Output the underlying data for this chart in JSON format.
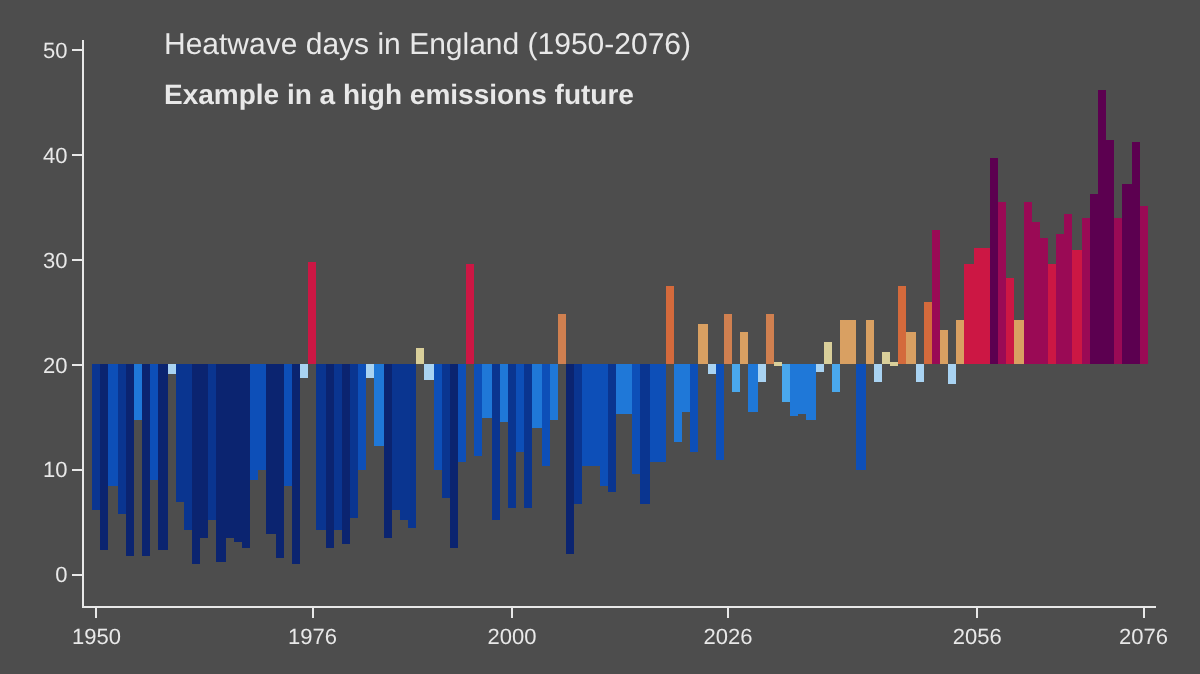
{
  "chart_data": {
    "type": "bar",
    "title": "Heatwave days in England (1950-2076)",
    "subtitle": "Example in a high emissions future",
    "x": [
      1950,
      1951,
      1952,
      1953,
      1954,
      1955,
      1956,
      1957,
      1958,
      1959,
      1960,
      1961,
      1962,
      1963,
      1964,
      1965,
      1966,
      1967,
      1968,
      1969,
      1970,
      1971,
      1972,
      1973,
      1974,
      1975,
      1976,
      1977,
      1978,
      1979,
      1980,
      1981,
      1982,
      1983,
      1984,
      1985,
      1986,
      1987,
      1988,
      1989,
      1990,
      1991,
      1992,
      1993,
      1994,
      1995,
      1996,
      1997,
      1998,
      1999,
      2000,
      2001,
      2002,
      2003,
      2004,
      2005,
      2006,
      2007,
      2008,
      2009,
      2010,
      2011,
      2012,
      2013,
      2014,
      2015,
      2016,
      2017,
      2018,
      2019,
      2020,
      2021,
      2022,
      2023,
      2024,
      2025,
      2026,
      2027,
      2028,
      2029,
      2030,
      2031,
      2032,
      2033,
      2034,
      2035,
      2036,
      2037,
      2038,
      2039,
      2040,
      2041,
      2042,
      2043,
      2044,
      2045,
      2046,
      2047,
      2048,
      2049,
      2050,
      2051,
      2052,
      2053,
      2054,
      2055,
      2056,
      2057,
      2058,
      2059,
      2060,
      2061,
      2062,
      2063,
      2064,
      2065,
      2066,
      2067,
      2068,
      2069,
      2070,
      2071,
      2072,
      2073,
      2074,
      2075,
      2076
    ],
    "base": [
      20,
      20,
      20,
      20,
      20,
      20,
      20,
      20,
      20,
      20,
      20,
      20,
      20,
      20,
      20,
      20,
      20,
      20,
      20,
      20,
      20,
      20,
      20,
      20,
      20,
      20,
      20,
      20,
      20,
      20,
      20,
      20,
      20,
      20,
      20,
      20,
      20,
      20,
      20,
      20,
      20,
      20,
      20,
      20,
      20,
      20,
      20,
      20,
      20,
      20,
      20,
      20,
      20,
      20,
      20,
      20,
      20,
      20,
      20,
      20,
      20,
      20,
      20,
      20,
      20,
      20,
      20,
      20,
      20,
      20,
      20,
      20,
      20,
      20,
      20,
      20,
      20,
      20,
      20,
      20,
      20,
      20,
      20,
      20,
      20,
      20,
      20,
      20,
      20,
      20,
      20,
      20,
      20,
      20,
      20,
      20,
      20,
      20,
      20,
      20,
      20,
      20,
      20,
      20,
      20,
      20,
      20,
      20,
      20,
      20,
      20,
      20,
      20,
      20,
      20,
      20,
      20,
      20,
      20,
      20,
      20,
      20,
      20,
      20,
      20,
      20,
      20
    ],
    "values": [
      -13.9,
      -17.6,
      -11.5,
      -14.2,
      -18.3,
      -5.3,
      -18.3,
      -11,
      -17.7,
      -0.9,
      -13.1,
      -15.7,
      -19,
      -16.5,
      -14.8,
      -18.8,
      -16.5,
      -16.8,
      -17.4,
      -11,
      -10.1,
      -16.1,
      -18.5,
      -11.5,
      -19,
      -1.2,
      9.8,
      -15.7,
      -17.4,
      -15.7,
      -17,
      -14.6,
      -10.1,
      -1.2,
      -7.7,
      -16.5,
      -13.9,
      -14.8,
      -15.5,
      1.6,
      -1.5,
      -10,
      -12.7,
      -17.4,
      -9.2,
      9.6,
      -8.7,
      -5,
      -14.8,
      -5.5,
      -13.7,
      -8.3,
      -13.7,
      -6,
      -9.6,
      -5.3,
      4.9,
      -18,
      -13.2,
      -9.6,
      -9.6,
      -11.5,
      -12.1,
      -4.6,
      -4.6,
      -10.5,
      -13.3,
      -9.2,
      -9.2,
      7.5,
      -7.4,
      -4.4,
      -8.3,
      4,
      -0.9,
      -9,
      4.9,
      -2.5,
      3.2,
      -4.4,
      -1.6,
      4.9,
      0.3,
      -3.6,
      -4.8,
      -4.6,
      -5.3,
      -0.7,
      2.1,
      -2.6,
      4.2,
      4.2,
      -10.1,
      4.2,
      -1.6,
      1.2,
      0.2,
      7.5,
      3.2,
      -1.6,
      6,
      12.9,
      3.4,
      -1.9,
      4.3,
      9.7,
      11.2,
      11.2,
      19.8,
      15.5,
      8.3,
      4.3,
      15.5,
      13.6,
      12.2,
      9.7,
      12.5,
      14.4,
      11,
      14,
      16.4,
      26.3,
      21.4,
      14,
      17.2,
      21.3,
      15.1
    ],
    "colors": [
      "#0a3590",
      "#0b2470",
      "#0d4fb8",
      "#0a3590",
      "#0b2470",
      "#1f78d8",
      "#0b2470",
      "#0d4fb8",
      "#0b2470",
      "#a9d3f2",
      "#0a3590",
      "#0a3590",
      "#0b2470",
      "#0b2470",
      "#0a3590",
      "#0b2470",
      "#0b2470",
      "#0b2470",
      "#0b2470",
      "#0d4fb8",
      "#0d4fb8",
      "#0b2470",
      "#0b2470",
      "#0d4fb8",
      "#0b2470",
      "#a9d3f2",
      "#cc1744",
      "#0a3590",
      "#0b2470",
      "#0a3590",
      "#0b2470",
      "#0a3590",
      "#0d4fb8",
      "#a9d3f2",
      "#1f78d8",
      "#0b2470",
      "#0a3590",
      "#0a3590",
      "#0a3590",
      "#d9cf9a",
      "#a9d3f2",
      "#0d4fb8",
      "#0a3590",
      "#0b2470",
      "#0d4fb8",
      "#cc1744",
      "#0d4fb8",
      "#1f78d8",
      "#0a3590",
      "#1f78d8",
      "#0a3590",
      "#0d4fb8",
      "#0a3590",
      "#1f78d8",
      "#0d4fb8",
      "#1f78d8",
      "#d08050",
      "#0b2470",
      "#0a3590",
      "#0d4fb8",
      "#0d4fb8",
      "#0d4fb8",
      "#0a3590",
      "#1f78d8",
      "#1f78d8",
      "#0d4fb8",
      "#0a3590",
      "#0d4fb8",
      "#0d4fb8",
      "#d46a3c",
      "#1f78d8",
      "#1f78d8",
      "#0d4fb8",
      "#d9a062",
      "#a9d3f2",
      "#0d4fb8",
      "#d08050",
      "#4aa8ec",
      "#d9a062",
      "#1f78d8",
      "#a9d3f2",
      "#d08050",
      "#d9cf9a",
      "#4aa8ec",
      "#1f78d8",
      "#1f78d8",
      "#1f78d8",
      "#a9d3f2",
      "#d9cf9a",
      "#4aa8ec",
      "#d9a062",
      "#d9a062",
      "#0d4fb8",
      "#d9a062",
      "#a9d3f2",
      "#d9cf9a",
      "#d9cf9a",
      "#d46a3c",
      "#d9a062",
      "#a9d3f2",
      "#d46a3c",
      "#9a0a55",
      "#d9a062",
      "#a9d3f2",
      "#d9a062",
      "#cc1744",
      "#cc1744",
      "#cc1744",
      "#5c0050",
      "#9a0a55",
      "#cc1744",
      "#d9a062",
      "#9a0a55",
      "#9a0a55",
      "#9a0a55",
      "#cc1744",
      "#9a0a55",
      "#9a0a55",
      "#cc1744",
      "#9a0a55",
      "#5c0050",
      "#5c0050",
      "#5c0050",
      "#9a0a55",
      "#5c0050",
      "#5c0050",
      "#9a0a55"
    ],
    "xlim": [
      1948.5,
      2077.5
    ],
    "ylim": [
      -3,
      51
    ],
    "xticks": [
      1950,
      1976,
      2000,
      2026,
      2056,
      2076
    ],
    "yticks": [
      0,
      10,
      20,
      30,
      40,
      50
    ]
  }
}
